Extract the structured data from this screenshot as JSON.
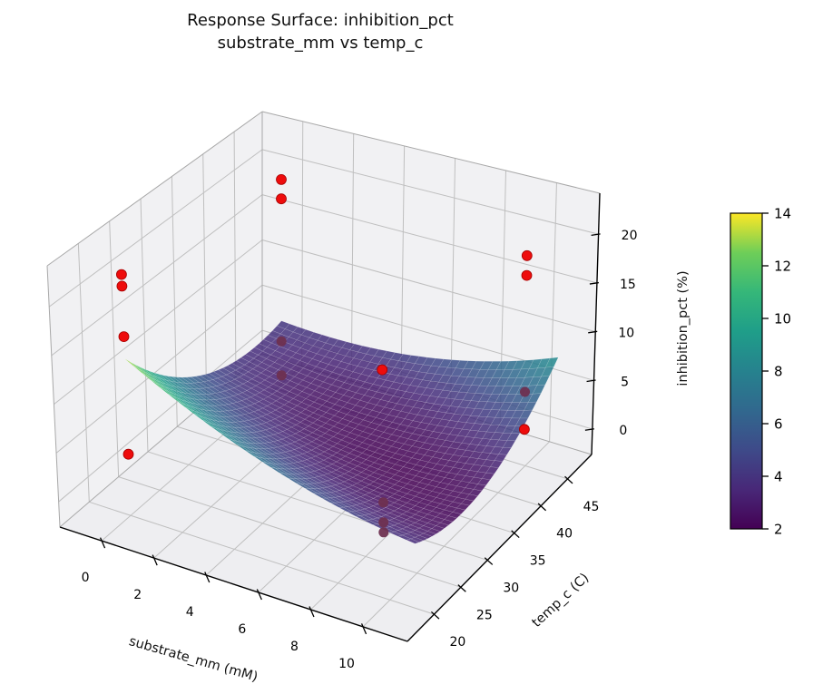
{
  "title": {
    "line1": "Response Surface: inhibition_pct",
    "line2": "substrate_mm vs temp_c"
  },
  "axes": {
    "x": {
      "label": "substrate_mm (mM)",
      "ticks": [
        0,
        2,
        4,
        6,
        8,
        10
      ],
      "lim": [
        -1.6,
        11.7
      ]
    },
    "y": {
      "label": "temp_c (C)",
      "ticks": [
        20,
        25,
        30,
        35,
        40,
        45
      ],
      "lim": [
        15,
        49.5
      ]
    },
    "z": {
      "label": "inhibition_pct (%)",
      "ticks": [
        0,
        5,
        10,
        15,
        20
      ],
      "lim": [
        -2.6,
        24.2
      ]
    }
  },
  "colorbar": {
    "vmin": 2,
    "vmax": 14,
    "ticks": [
      2,
      4,
      6,
      8,
      10,
      12,
      14
    ]
  },
  "chart_data": {
    "type": "surface",
    "title": "Response Surface: inhibition_pct\nsubstrate_mm vs temp_c",
    "xlabel": "substrate_mm (mM)",
    "ylabel": "temp_c (C)",
    "zlabel": "inhibition_pct (%)",
    "surface": {
      "model": "z = z0 + a*(x-x0)^2 + b*(y-y0)^2 + c*(x-x0)*(y-y0)",
      "z0": 2,
      "x0": 8,
      "y0": 32,
      "a": 0.058,
      "b": 0.021,
      "c": 0.05,
      "x_range": [
        0,
        11
      ],
      "y_range": [
        20,
        46
      ],
      "grid_n": 34,
      "colormap": "viridis",
      "cmap_min": 2,
      "cmap_max": 14,
      "alpha": 0.85
    },
    "scatter": {
      "color": "#ee0c0c",
      "occluded_color": "#6e3050",
      "points": [
        {
          "substrate_mm": 0.0,
          "temp_c": 20,
          "inhibition_pct": 22.2,
          "occluded": false
        },
        {
          "substrate_mm": 0.0,
          "temp_c": 20,
          "inhibition_pct": 21.0,
          "occluded": false
        },
        {
          "substrate_mm": 0.0,
          "temp_c": 20,
          "inhibition_pct": 15.8,
          "occluded": false
        },
        {
          "substrate_mm": 0.0,
          "temp_c": 20,
          "inhibition_pct": 3.7,
          "occluded": false
        },
        {
          "substrate_mm": 0.0,
          "temp_c": 46,
          "inhibition_pct": 19.6,
          "occluded": false
        },
        {
          "substrate_mm": 0.0,
          "temp_c": 46,
          "inhibition_pct": 17.5,
          "occluded": false
        },
        {
          "substrate_mm": 0.0,
          "temp_c": 46,
          "inhibition_pct": 2.0,
          "occluded": true
        },
        {
          "substrate_mm": 0.0,
          "temp_c": 46,
          "inhibition_pct": -1.7,
          "occluded": true
        },
        {
          "substrate_mm": 6.5,
          "temp_c": 35,
          "inhibition_pct": 9.9,
          "occluded": false
        },
        {
          "substrate_mm": 8.5,
          "temp_c": 26,
          "inhibition_pct": 2.7,
          "occluded": true
        },
        {
          "substrate_mm": 8.5,
          "temp_c": 26,
          "inhibition_pct": 0.7,
          "occluded": true
        },
        {
          "substrate_mm": 8.5,
          "temp_c": 26,
          "inhibition_pct": -0.3,
          "occluded": true
        },
        {
          "substrate_mm": 11.0,
          "temp_c": 40,
          "inhibition_pct": 8.4,
          "occluded": true
        },
        {
          "substrate_mm": 11.0,
          "temp_c": 40,
          "inhibition_pct": 4.6,
          "occluded": false
        },
        {
          "substrate_mm": 11.0,
          "temp_c": 40,
          "inhibition_pct": 22.2,
          "occluded": false
        },
        {
          "substrate_mm": 11.0,
          "temp_c": 40,
          "inhibition_pct": 20.2,
          "occluded": false
        }
      ]
    },
    "colormap_stops": [
      "#440154",
      "#482878",
      "#3e4a89",
      "#31688e",
      "#26828e",
      "#1f9e89",
      "#35b779",
      "#6ece58",
      "#fde725"
    ],
    "legend": null,
    "grid": true
  }
}
